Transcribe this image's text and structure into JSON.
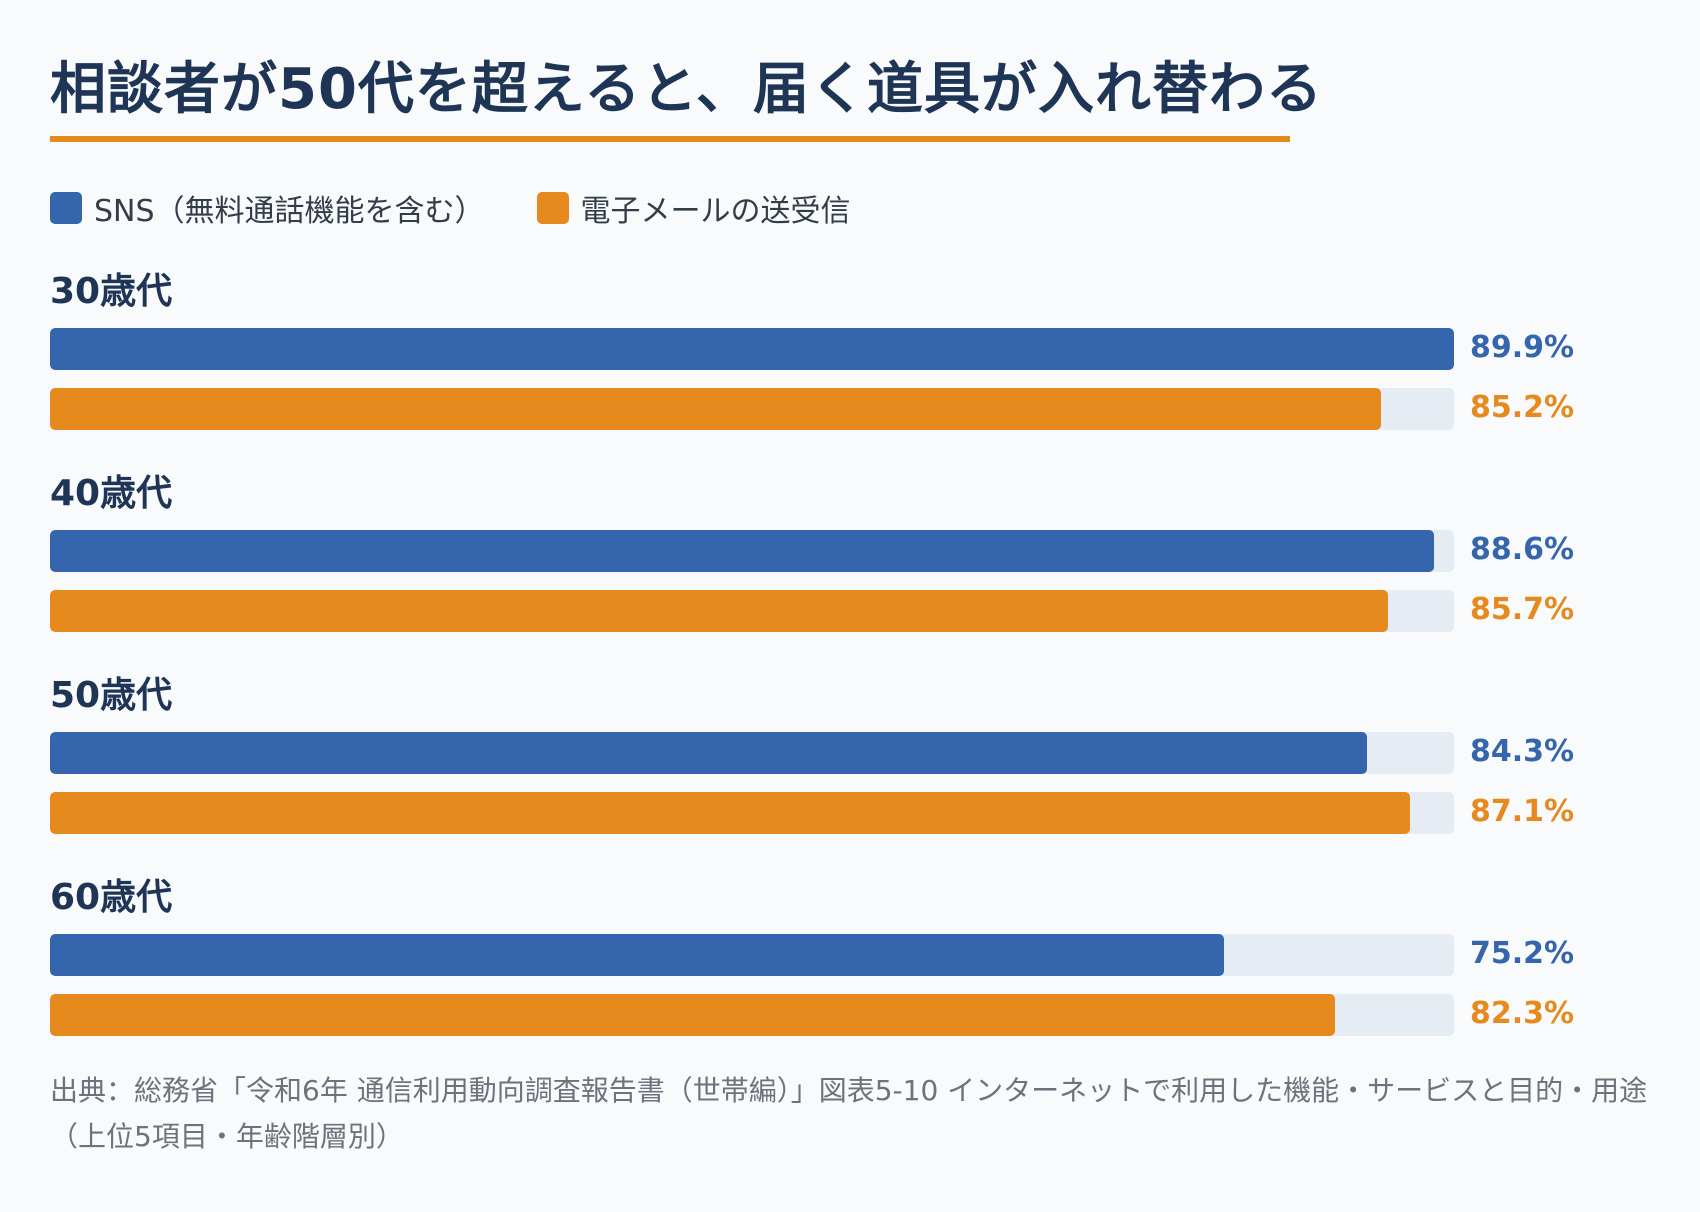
{
  "colors": {
    "sns": "#3566ad",
    "email": "#e68a1e",
    "sns_text": "#3566ad",
    "email_text": "#e68a1e",
    "track": "#e6ecf4",
    "title": "#1f3556",
    "rule": "#e68a1e"
  },
  "chart_data": {
    "type": "bar",
    "orientation": "horizontal",
    "title": "相談者が50代を超えると、届く道具が入れ替わる",
    "categories": [
      "30歳代",
      "40歳代",
      "50歳代",
      "60歳代"
    ],
    "series": [
      {
        "name": "SNS（無料通話機能を含む）",
        "values": [
          89.9,
          88.6,
          84.3,
          75.2
        ]
      },
      {
        "name": "電子メールの送受信",
        "values": [
          85.2,
          85.7,
          87.1,
          82.3
        ]
      }
    ],
    "value_labels": [
      [
        "89.9%",
        "88.6%",
        "84.3%",
        "75.2%"
      ],
      [
        "85.2%",
        "85.7%",
        "87.1%",
        "82.3%"
      ]
    ],
    "xlim": [
      0,
      89.9
    ],
    "legend": "top-left",
    "grid": false,
    "source": "出典：総務省「令和6年 通信利用動向調査報告書（世帯編）」図表5-10 インターネットで利用した機能・サービスと目的・用途（上位5項目・年齢階層別）"
  }
}
